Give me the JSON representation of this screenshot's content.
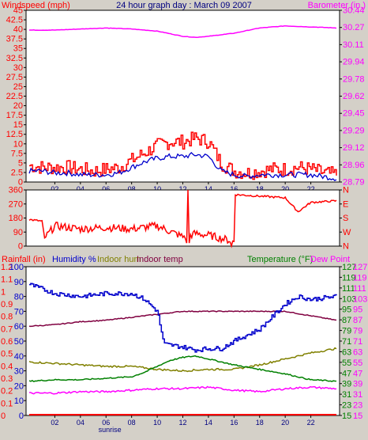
{
  "chart_data": [
    {
      "type": "line",
      "title": "24 hour graph day : March 09 2007",
      "left_axis_label": "Windspeed (mph)",
      "right_axis_label": "Barometer (in.)",
      "x_ticks": [
        "02",
        "04",
        "06",
        "08",
        "10",
        "12",
        "14",
        "16",
        "18",
        "20",
        "22"
      ],
      "x_annotation": "sunrise",
      "left_ticks": [
        "0",
        "2.5",
        "5",
        "7.5",
        "10",
        "12.5",
        "15",
        "17.5",
        "20",
        "22.5",
        "25",
        "27.5",
        "30",
        "32.5",
        "35",
        "37.5",
        "40",
        "42.5",
        "45"
      ],
      "left_ylim": [
        0,
        47
      ],
      "right_ticks": [
        "28.79",
        "28.96",
        "29.12",
        "29.29",
        "29.45",
        "29.62",
        "29.78",
        "29.94",
        "30.11",
        "30.27",
        "30.44"
      ],
      "right_ylim": [
        28.79,
        30.44
      ],
      "colors": {
        "windspeed_gust": "#ff0000",
        "windspeed_avg": "#0000cc",
        "barometer": "#ff00ff",
        "left_axis": "#ff0000",
        "right_axis": "#ff00ff"
      },
      "series": [
        {
          "axis": "left",
          "color": "#ff0000",
          "x": [
            0,
            1,
            2,
            3,
            4,
            5,
            6,
            7,
            8,
            9,
            10,
            11,
            12,
            13,
            14,
            15,
            16,
            17,
            18,
            19,
            20,
            21,
            22,
            23,
            24
          ],
          "values": [
            4.5,
            4,
            4,
            4,
            3.5,
            3,
            3.5,
            4,
            6,
            8,
            10,
            11,
            11,
            12,
            11,
            5,
            3,
            2.5,
            3,
            3.5,
            3.5,
            4,
            3.5,
            2.5,
            2
          ]
        },
        {
          "axis": "left",
          "color": "#0000cc",
          "x": [
            0,
            1,
            2,
            3,
            4,
            5,
            6,
            7,
            8,
            9,
            10,
            11,
            12,
            13,
            14,
            15,
            16,
            17,
            18,
            19,
            20,
            21,
            22,
            23,
            24
          ],
          "values": [
            3,
            3,
            2.5,
            2.5,
            2,
            2,
            2,
            2.5,
            4,
            5.5,
            6.5,
            7,
            7,
            7.5,
            7,
            3,
            2,
            1.5,
            2,
            2,
            2,
            2,
            2,
            1.5,
            1
          ]
        },
        {
          "axis": "right",
          "color": "#ff00ff",
          "x": [
            0,
            2,
            4,
            6,
            8,
            10,
            12,
            13,
            14,
            16,
            18,
            20,
            22,
            24
          ],
          "values": [
            30.25,
            30.25,
            30.26,
            30.27,
            30.26,
            30.24,
            30.19,
            30.18,
            30.19,
            30.22,
            30.27,
            30.29,
            30.28,
            30.27
          ]
        }
      ]
    },
    {
      "type": "line",
      "left_ticks": [
        "0",
        "90",
        "180",
        "270",
        "360"
      ],
      "left_ylim": [
        0,
        360
      ],
      "right_ticks": [
        "N",
        "W",
        "S",
        "E",
        "N"
      ],
      "colors": {
        "direction": "#ff0000",
        "left_axis": "#ff0000",
        "right_axis": "#ff0000"
      },
      "series": [
        {
          "axis": "left",
          "color": "#ff0000",
          "x": [
            0,
            1,
            1.2,
            2,
            4,
            6,
            8,
            10,
            12,
            13,
            14,
            16,
            16.1,
            18,
            20,
            21,
            22,
            24
          ],
          "values": [
            170,
            160,
            50,
            130,
            110,
            120,
            110,
            130,
            60,
            80,
            70,
            30,
            330,
            320,
            310,
            220,
            280,
            290
          ]
        }
      ]
    },
    {
      "type": "line",
      "left_axis_labels": [
        "Rainfall (in)",
        "Humidity %",
        "Indoor hum",
        "Indoor temp"
      ],
      "right_axis_labels": [
        "Temperature (°F)",
        "Dew Point"
      ],
      "x_ticks": [
        "02",
        "04",
        "06",
        "08",
        "10",
        "12",
        "14",
        "16",
        "18",
        "20",
        "22"
      ],
      "x_annotation": "sunrise",
      "rain_ticks": [
        "0",
        "0.1",
        "0.2",
        "0.3",
        "0.4",
        "0.5",
        "0.6",
        "0.7",
        "0.8",
        "0.9",
        "1",
        "1.1",
        "1.2"
      ],
      "rain_ylim": [
        0,
        1.2
      ],
      "humidity_ticks": [
        "0",
        "10",
        "20",
        "30",
        "40",
        "50",
        "60",
        "70",
        "80",
        "90",
        "100"
      ],
      "humidity_ylim": [
        0,
        100
      ],
      "right_ticks": [
        "15",
        "23",
        "31",
        "39",
        "47",
        "55",
        "63",
        "71",
        "79",
        "87",
        "95",
        "103",
        "111",
        "119",
        "127"
      ],
      "right_ylim": [
        15,
        115
      ],
      "colors": {
        "rainfall": "#ff0000",
        "humidity": "#0000cc",
        "indoor_hum": "#808000",
        "indoor_temp": "#800040",
        "temperature": "#008000",
        "dew_point": "#ff00ff"
      },
      "series": [
        {
          "axis": "humidity",
          "color": "#0000cc",
          "x": [
            0,
            2,
            4,
            6,
            8,
            9,
            10,
            10.5,
            12,
            13,
            14,
            15,
            16,
            18,
            20,
            21,
            22,
            24
          ],
          "values": [
            88,
            82,
            80,
            82,
            82,
            78,
            70,
            48,
            46,
            44,
            45,
            45,
            50,
            58,
            75,
            80,
            78,
            80
          ]
        },
        {
          "axis": "humidity",
          "color": "#808000",
          "x": [
            0,
            2,
            4,
            6,
            8,
            10,
            12,
            14,
            16,
            18,
            20,
            22,
            24
          ],
          "values": [
            36,
            35,
            34,
            33,
            33,
            31,
            30,
            31,
            31,
            34,
            38,
            42,
            45
          ]
        },
        {
          "axis": "humidity",
          "color": "#800040",
          "x": [
            0,
            2,
            4,
            6,
            8,
            10,
            12,
            14,
            16,
            18,
            20,
            22,
            24
          ],
          "values": [
            60,
            61,
            63,
            64,
            66,
            68,
            70,
            70,
            70,
            70,
            70,
            67,
            64
          ]
        },
        {
          "axis": "right",
          "color": "#008000",
          "x": [
            0,
            2,
            4,
            6,
            8,
            9,
            10,
            11,
            12,
            13,
            14,
            15,
            16,
            18,
            20,
            22,
            24
          ],
          "values": [
            38,
            39,
            39,
            40,
            41,
            44,
            48,
            52,
            54,
            55,
            53,
            51,
            49,
            46,
            43,
            39,
            38
          ]
        },
        {
          "axis": "right",
          "color": "#ff00ff",
          "x": [
            0,
            2,
            4,
            6,
            8,
            10,
            12,
            14,
            16,
            18,
            20,
            22,
            24
          ],
          "values": [
            30,
            30,
            31,
            31,
            32,
            33,
            33,
            34,
            32,
            31,
            33,
            34,
            33
          ]
        },
        {
          "axis": "rain",
          "color": "#ff0000",
          "x": [
            0,
            24
          ],
          "values": [
            0,
            0
          ]
        }
      ]
    }
  ]
}
